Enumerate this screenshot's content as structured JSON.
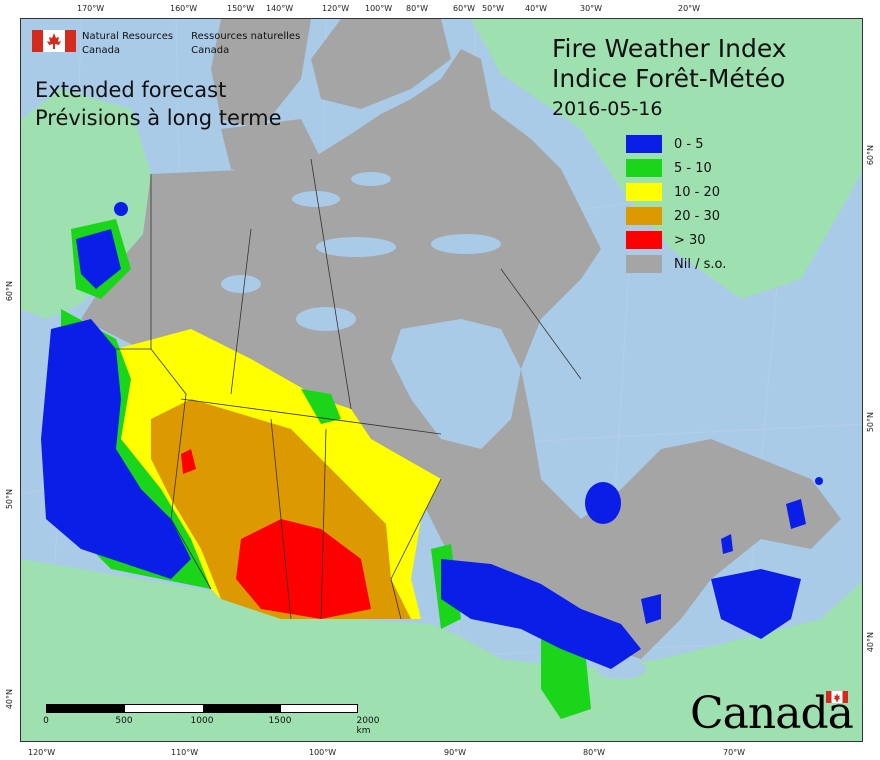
{
  "agency": {
    "name_en_line1": "Natural Resources",
    "name_en_line2": "Canada",
    "name_fr_line1": "Ressources naturelles",
    "name_fr_line2": "Canada"
  },
  "title": {
    "line1": "Fire Weather Index",
    "line2": "Indice Forêt-Météo",
    "date": "2016-05-16"
  },
  "subtitle": {
    "line1": "Extended forecast",
    "line2": "Prévisions à long terme"
  },
  "legend": [
    {
      "label": "0 - 5",
      "color": "#0a1ee8"
    },
    {
      "label": "5 - 10",
      "color": "#1ad51a"
    },
    {
      "label": "10 - 20",
      "color": "#ffff00"
    },
    {
      "label": "20 - 30",
      "color": "#dc9a00"
    },
    {
      "label": "> 30",
      "color": "#ff0000"
    },
    {
      "label": "Nil / s.o.",
      "color": "#a5a5a5"
    }
  ],
  "colors": {
    "water": "#a9cbe8",
    "land_other": "#9ee0b0",
    "nil": "#a5a5a5",
    "border": "#333333"
  },
  "top_ticks": [
    "170°W",
    "160°W",
    "150°W",
    "140°W",
    "120°W",
    "100°W",
    "80°W",
    "60°W",
    "50°W",
    "40°W",
    "30°W",
    "20°W"
  ],
  "bottom_ticks": [
    "120°W",
    "110°W",
    "100°W",
    "90°W",
    "80°W",
    "70°W"
  ],
  "left_ticks": [
    "60°N",
    "50°N",
    "40°N"
  ],
  "right_ticks": [
    "60°N",
    "50°N",
    "40°N"
  ],
  "scalebar": {
    "labels": [
      "0",
      "500",
      "1000",
      "1500",
      "2000 km"
    ]
  },
  "wordmark": "Canada"
}
